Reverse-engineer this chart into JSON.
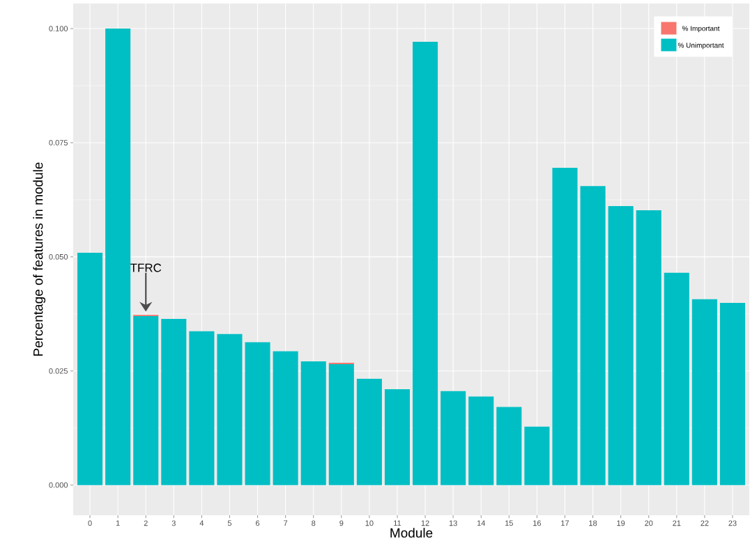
{
  "chart_data": {
    "type": "bar",
    "stacked": true,
    "xlabel": "Module",
    "ylabel": "Percentage of features in module",
    "categories": [
      "0",
      "1",
      "2",
      "3",
      "4",
      "5",
      "6",
      "7",
      "8",
      "9",
      "10",
      "11",
      "12",
      "13",
      "14",
      "15",
      "16",
      "17",
      "18",
      "19",
      "20",
      "21",
      "22",
      "23"
    ],
    "series": [
      {
        "name": "% Unimportant",
        "color": "#00BFC4",
        "values": [
          0.0509,
          0.1,
          0.037,
          0.0364,
          0.0337,
          0.0331,
          0.0313,
          0.0293,
          0.0271,
          0.0265,
          0.0233,
          0.021,
          0.0971,
          0.0206,
          0.0194,
          0.0171,
          0.0128,
          0.0695,
          0.0655,
          0.0611,
          0.0602,
          0.0465,
          0.0407,
          0.0399
        ]
      },
      {
        "name": "% Important",
        "color": "#F8766D",
        "values": [
          0,
          0,
          0.0003,
          0,
          0,
          0,
          0,
          0,
          0,
          0.0003,
          0,
          0,
          0,
          0,
          0,
          0,
          0,
          0,
          0,
          0,
          0,
          0,
          0,
          0
        ]
      }
    ],
    "ylim": [
      -0.0066,
      0.1055
    ],
    "yticks": [
      {
        "value": 0,
        "label": "0.000"
      },
      {
        "value": 0.025,
        "label": "0.025"
      },
      {
        "value": 0.05,
        "label": "0.050"
      },
      {
        "value": 0.075,
        "label": "0.075"
      },
      {
        "value": 0.1,
        "label": "0.100"
      }
    ],
    "grid": true,
    "legend": "top right",
    "annotations": [
      {
        "text": "TFRC",
        "x": "2",
        "y": 0.038
      }
    ]
  }
}
